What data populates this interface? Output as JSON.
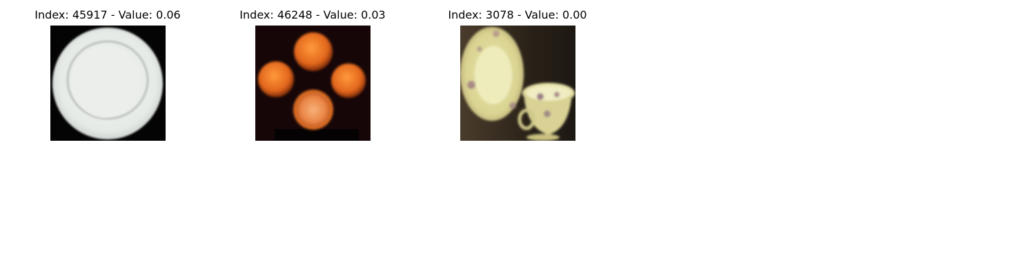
{
  "panels": [
    {
      "title": "Index: 45917 - Value: 0.06",
      "image": "white-plate-photo"
    },
    {
      "title": "Index: 46248 - Value: 0.03",
      "image": "oranges-photo"
    },
    {
      "title": "Index: 3078 - Value: 0.00",
      "image": "floral-plate-and-teacup-photo"
    }
  ]
}
